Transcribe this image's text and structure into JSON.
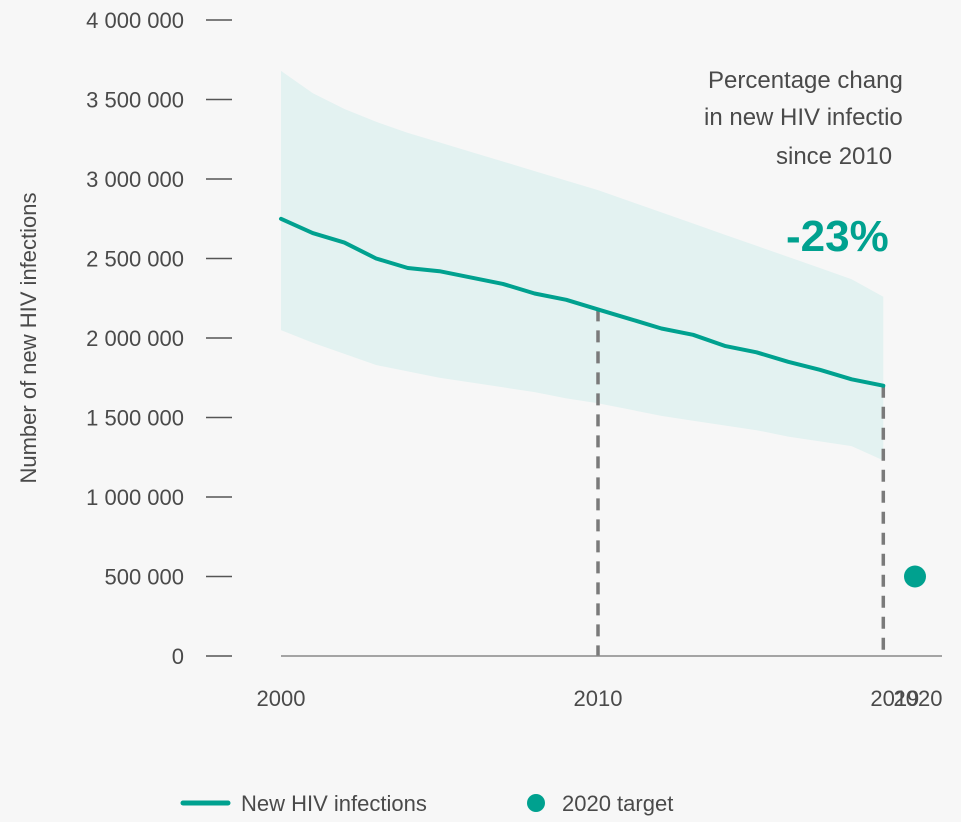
{
  "chart_data": {
    "type": "line",
    "ylabel": "Number of new HIV infections",
    "xlabel": "",
    "ylim": [
      0,
      4000000
    ],
    "xlim": [
      2000,
      2020
    ],
    "y_ticks": [
      0,
      500000,
      1000000,
      1500000,
      2000000,
      2500000,
      3000000,
      3500000,
      4000000
    ],
    "y_tick_labels": [
      "0",
      "500 000",
      "1 000 000",
      "1 500 000",
      "2 000 000",
      "2 500 000",
      "3 000 000",
      "3 500 000",
      "4 000 000"
    ],
    "x_ticks": [
      2000,
      2010,
      2019,
      2020
    ],
    "x_tick_labels": [
      "2000",
      "2010",
      "2019",
      "2020"
    ],
    "grid": false,
    "legend_position": "bottom",
    "colors": {
      "line": "#00a18f",
      "band": "#e3f2f1",
      "target": "#00a18f",
      "dashed": "#7a7a7a",
      "axis": "#888888"
    },
    "series": [
      {
        "name": "New HIV infections",
        "x": [
          2000,
          2001,
          2002,
          2003,
          2004,
          2005,
          2006,
          2007,
          2008,
          2009,
          2010,
          2011,
          2012,
          2013,
          2014,
          2015,
          2016,
          2017,
          2018,
          2019
        ],
        "values": [
          2750000,
          2660000,
          2600000,
          2500000,
          2440000,
          2420000,
          2380000,
          2340000,
          2280000,
          2240000,
          2180000,
          2120000,
          2060000,
          2020000,
          1950000,
          1910000,
          1850000,
          1800000,
          1740000,
          1700000
        ],
        "lower": [
          2050000,
          1970000,
          1900000,
          1830000,
          1790000,
          1750000,
          1720000,
          1690000,
          1660000,
          1620000,
          1590000,
          1550000,
          1510000,
          1480000,
          1450000,
          1420000,
          1380000,
          1350000,
          1320000,
          1230000
        ],
        "upper": [
          3680000,
          3540000,
          3440000,
          3360000,
          3290000,
          3230000,
          3170000,
          3110000,
          3050000,
          2990000,
          2930000,
          2860000,
          2790000,
          2720000,
          2650000,
          2580000,
          2510000,
          2440000,
          2370000,
          2260000
        ]
      },
      {
        "name": "2020 target",
        "x": [
          2020
        ],
        "values": [
          500000
        ]
      }
    ],
    "reference_lines_x": [
      2010,
      2019
    ],
    "annotation": {
      "lines": [
        "Percentage chang",
        "in new HIV infectio",
        "since 2010"
      ],
      "value": "-23%"
    }
  }
}
